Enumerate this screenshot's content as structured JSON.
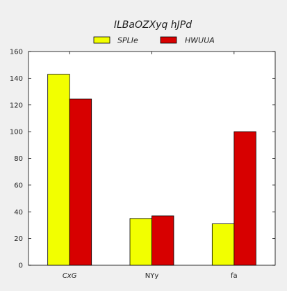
{
  "chart_data": {
    "type": "bar",
    "title": "ILBaOZXyq hJPd",
    "categories": [
      "CxG",
      "NYy",
      "fa"
    ],
    "series": [
      {
        "name": "SPLIe",
        "color": "#f2ff00",
        "values": [
          143,
          35,
          31
        ]
      },
      {
        "name": "HWUUA",
        "color": "#d70000",
        "values": [
          124.5,
          37,
          100
        ]
      }
    ],
    "ylim": [
      0,
      160
    ],
    "yticks": [
      0,
      20,
      40,
      60,
      80,
      100,
      120,
      140,
      160
    ],
    "xlabel": "",
    "ylabel": "",
    "grid": false,
    "legend_position": "top",
    "category_label_italic": [
      true,
      false,
      false
    ]
  }
}
